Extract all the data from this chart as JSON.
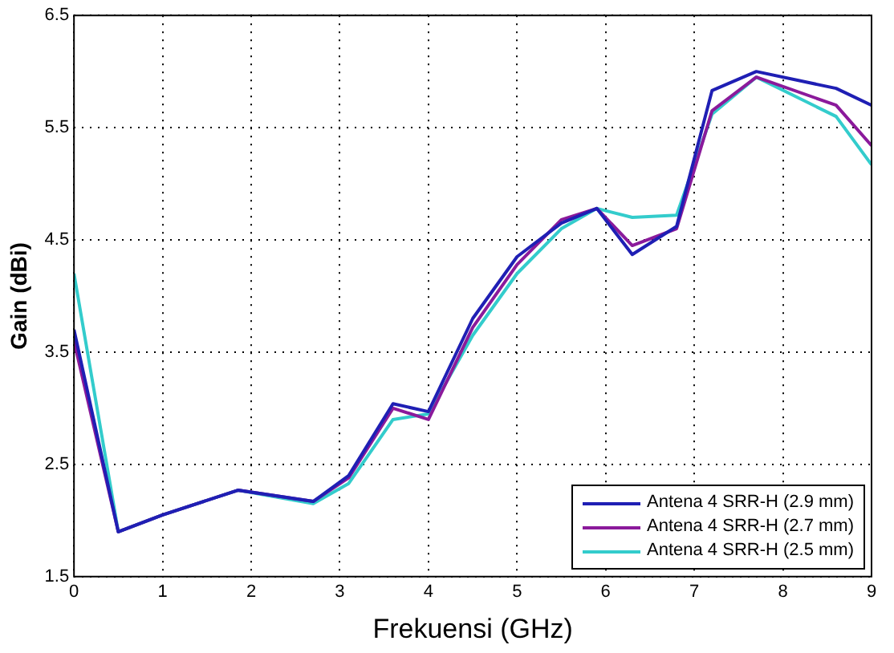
{
  "chart_data": {
    "type": "line",
    "xlabel": "Frekuensi (GHz)",
    "ylabel": "Gain (dBi)",
    "x": [
      0,
      0.5,
      1,
      1.85,
      2.7,
      3.1,
      3.6,
      4.0,
      4.5,
      5.0,
      5.5,
      5.9,
      6.3,
      6.8,
      7.2,
      7.7,
      8.6,
      9.0
    ],
    "series": [
      {
        "name": "Antena 4 SRR-H (2.9 mm)",
        "color": "#1f1fb4",
        "values": [
          3.7,
          1.9,
          2.05,
          2.27,
          2.17,
          2.4,
          3.04,
          2.97,
          3.8,
          4.35,
          4.65,
          4.78,
          4.37,
          4.62,
          5.83,
          6.0,
          5.85,
          5.7
        ]
      },
      {
        "name": "Antena 4 SRR-H (2.7 mm)",
        "color": "#8b1a9b",
        "values": [
          3.6,
          1.9,
          2.05,
          2.27,
          2.17,
          2.38,
          3.0,
          2.9,
          3.72,
          4.28,
          4.68,
          4.78,
          4.45,
          4.6,
          5.65,
          5.95,
          5.7,
          5.34
        ]
      },
      {
        "name": "Antena 4 SRR-H (2.5 mm)",
        "color": "#33cccc",
        "values": [
          4.2,
          1.9,
          2.05,
          2.27,
          2.15,
          2.33,
          2.9,
          2.95,
          3.65,
          4.2,
          4.6,
          4.78,
          4.7,
          4.72,
          5.62,
          5.95,
          5.6,
          5.17
        ]
      }
    ],
    "xlim": [
      0,
      9
    ],
    "xticks": [
      0,
      1,
      2,
      3,
      4,
      5,
      6,
      7,
      8,
      9
    ],
    "ylim": [
      1.5,
      6.5
    ],
    "yticks": [
      1.5,
      2.5,
      3.5,
      4.5,
      5.5,
      6.5
    ],
    "grid": true,
    "legend": "bottom right",
    "marker": "none",
    "line_style": "solid"
  }
}
